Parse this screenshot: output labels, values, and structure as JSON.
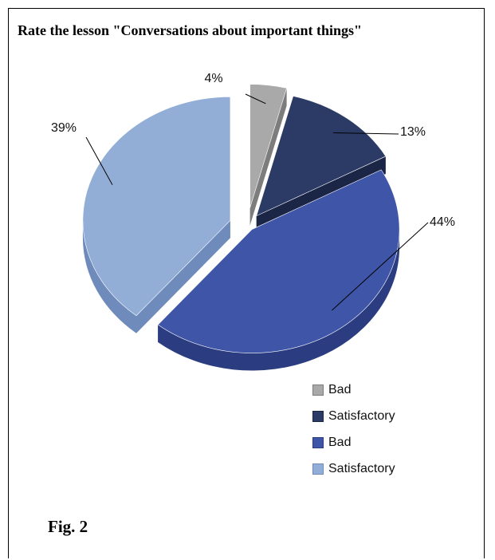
{
  "chart_data": {
    "type": "pie",
    "title": "Rate the lesson \"Conversations about important things\"",
    "three_d": true,
    "slices": [
      {
        "label": "Bad",
        "value": 4,
        "value_label": "4%",
        "color": "#a9a9a9",
        "side": "#7d7d7d"
      },
      {
        "label": "Satisfactory",
        "value": 13,
        "value_label": "13%",
        "color": "#2c3b66",
        "side": "#1b2647"
      },
      {
        "label": "Bad",
        "value": 44,
        "value_label": "44%",
        "color": "#3f56a8",
        "side": "#2b3d80"
      },
      {
        "label": "Satisfactory",
        "value": 39,
        "value_label": "39%",
        "color": "#92add6",
        "side": "#6f8bbb"
      }
    ],
    "legend_position": "bottom-right"
  },
  "caption": "Fig. 2"
}
